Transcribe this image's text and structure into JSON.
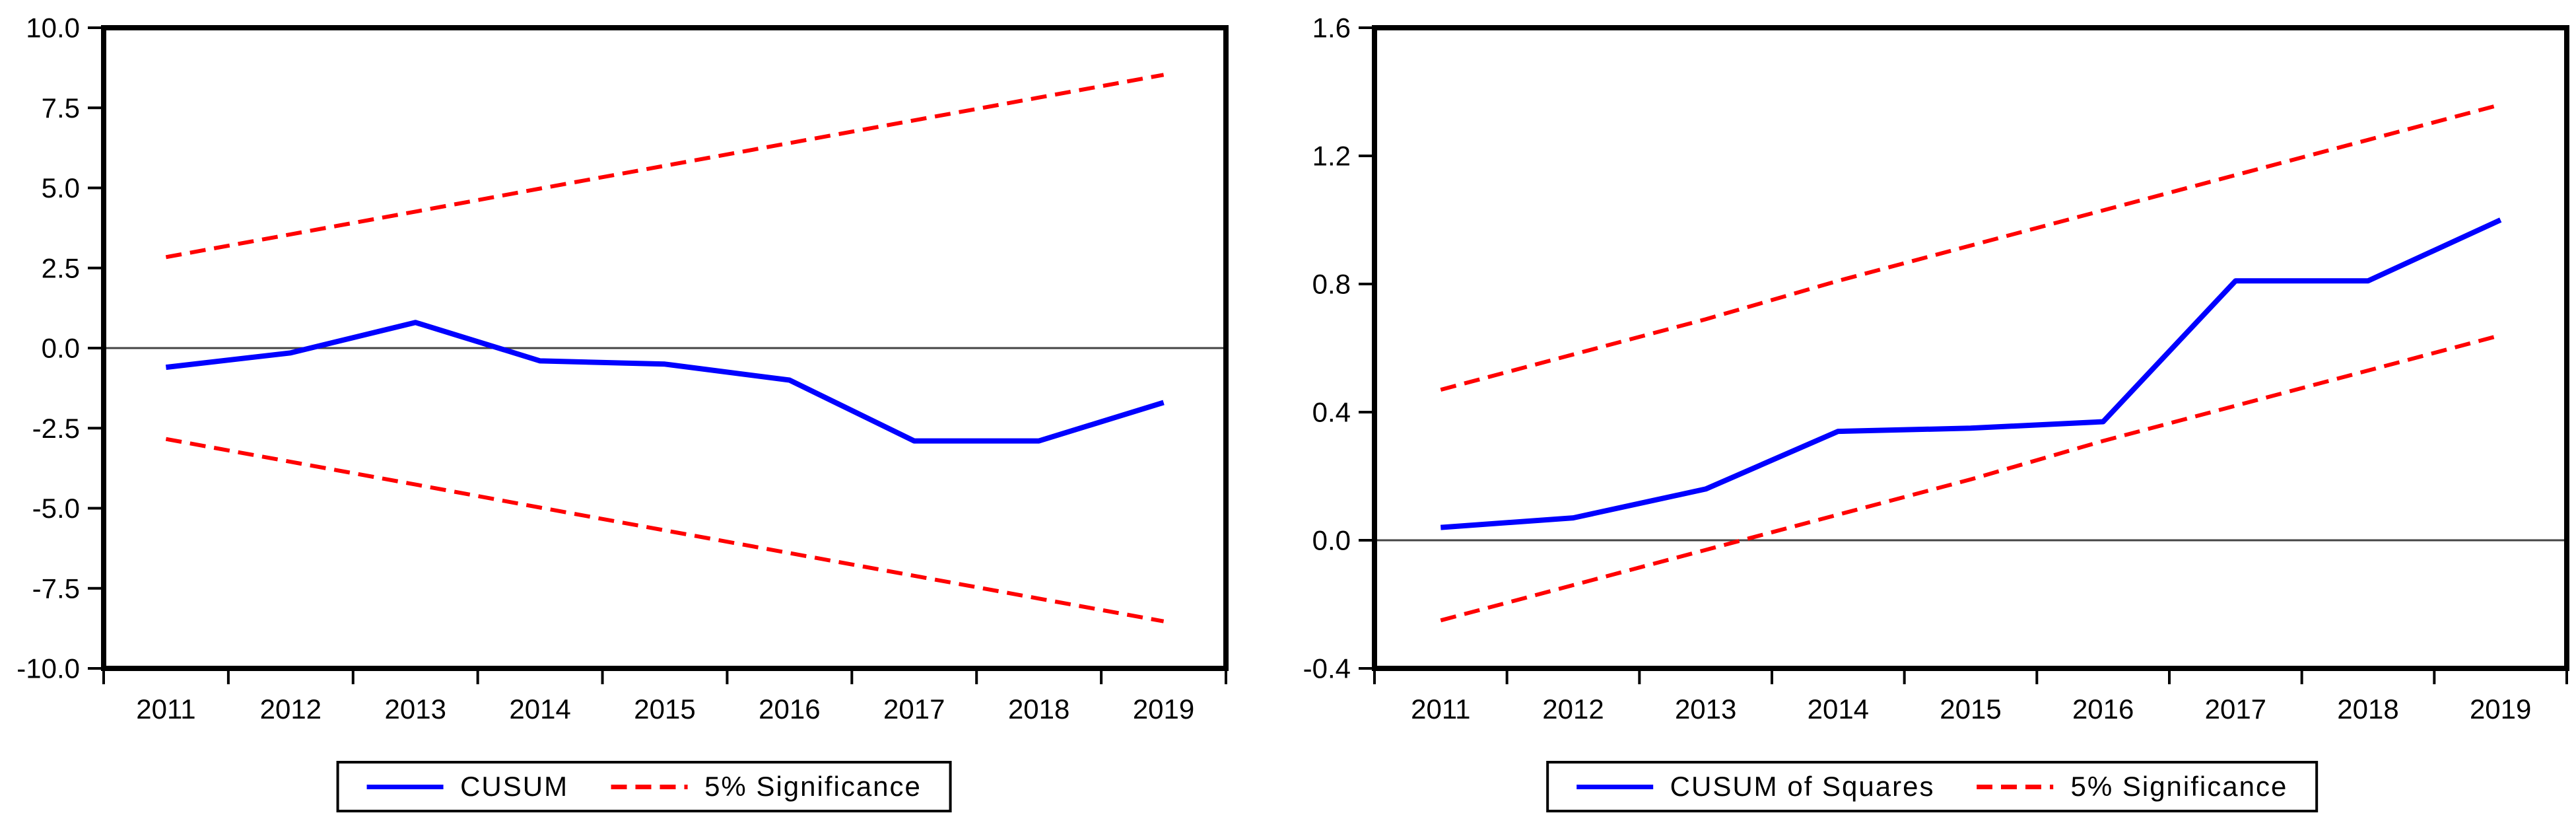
{
  "page": {
    "background": "#ffffff",
    "description": "CUSUM and CUSUM of Squares stability test plots with 5% significance bounds"
  },
  "colors": {
    "series_blue": "#0000ff",
    "significance_red": "#ff0000",
    "axis_black": "#000000",
    "zero_line_gray": "#444444"
  },
  "chart_data": [
    {
      "type": "line",
      "title": "",
      "xlabel": "",
      "ylabel": "",
      "x_labels": [
        "2011",
        "2012",
        "2013",
        "2014",
        "2015",
        "2016",
        "2017",
        "2018",
        "2019"
      ],
      "y_ticks": [
        "10.0",
        "7.5",
        "5.0",
        "2.5",
        "0.0",
        "-2.5",
        "-5.0",
        "-7.5",
        "-10.0"
      ],
      "ylim": [
        -10,
        10
      ],
      "grid": false,
      "zero_line": true,
      "legend_position": "bottom-center",
      "series": [
        {
          "id": "cusum-line",
          "name": "CUSUM",
          "color": "#0000ff",
          "dashed": false,
          "width": 8,
          "values": [
            -0.6,
            -0.15,
            0.8,
            -0.4,
            -0.5,
            -1.0,
            -2.9,
            -2.9,
            -1.7
          ]
        },
        {
          "id": "significance-upper-line",
          "name": "5% Significance (upper)",
          "color": "#ff0000",
          "dashed": true,
          "width": 6,
          "values": [
            2.84,
            3.55,
            4.26,
            4.98,
            5.69,
            6.4,
            7.11,
            7.82,
            8.53
          ]
        },
        {
          "id": "significance-lower-line",
          "name": "5% Significance (lower)",
          "color": "#ff0000",
          "dashed": true,
          "width": 6,
          "values": [
            -2.84,
            -3.55,
            -4.26,
            -4.98,
            -5.69,
            -6.4,
            -7.11,
            -7.82,
            -8.53
          ]
        }
      ],
      "legend": [
        {
          "label": "CUSUM",
          "color": "#0000ff",
          "dashed": false
        },
        {
          "label": "5% Significance",
          "color": "#ff0000",
          "dashed": true
        }
      ]
    },
    {
      "type": "line",
      "title": "",
      "xlabel": "",
      "ylabel": "",
      "x_labels": [
        "2011",
        "2012",
        "2013",
        "2014",
        "2015",
        "2016",
        "2017",
        "2018",
        "2019"
      ],
      "y_ticks": [
        "1.6",
        "1.2",
        "0.8",
        "0.4",
        "0.0",
        "-0.4"
      ],
      "ylim": [
        -0.4,
        1.6
      ],
      "grid": false,
      "zero_line": true,
      "legend_position": "bottom-center",
      "series": [
        {
          "id": "cusum-of-squares-line",
          "name": "CUSUM of Squares",
          "color": "#0000ff",
          "dashed": false,
          "width": 8,
          "values": [
            0.04,
            0.07,
            0.16,
            0.34,
            0.35,
            0.37,
            0.81,
            0.81,
            1.0
          ]
        },
        {
          "id": "significance-upper-line",
          "name": "5% Significance (upper)",
          "color": "#ff0000",
          "dashed": true,
          "width": 6,
          "values": [
            0.47,
            0.58,
            0.69,
            0.81,
            0.92,
            1.03,
            1.14,
            1.25,
            1.36
          ]
        },
        {
          "id": "significance-lower-line",
          "name": "5% Significance (lower)",
          "color": "#ff0000",
          "dashed": true,
          "width": 6,
          "values": [
            -0.25,
            -0.14,
            -0.03,
            0.08,
            0.19,
            0.31,
            0.42,
            0.53,
            0.64
          ]
        }
      ],
      "legend": [
        {
          "label": "CUSUM of Squares",
          "color": "#0000ff",
          "dashed": false
        },
        {
          "label": "5% Significance",
          "color": "#ff0000",
          "dashed": true
        }
      ]
    }
  ]
}
